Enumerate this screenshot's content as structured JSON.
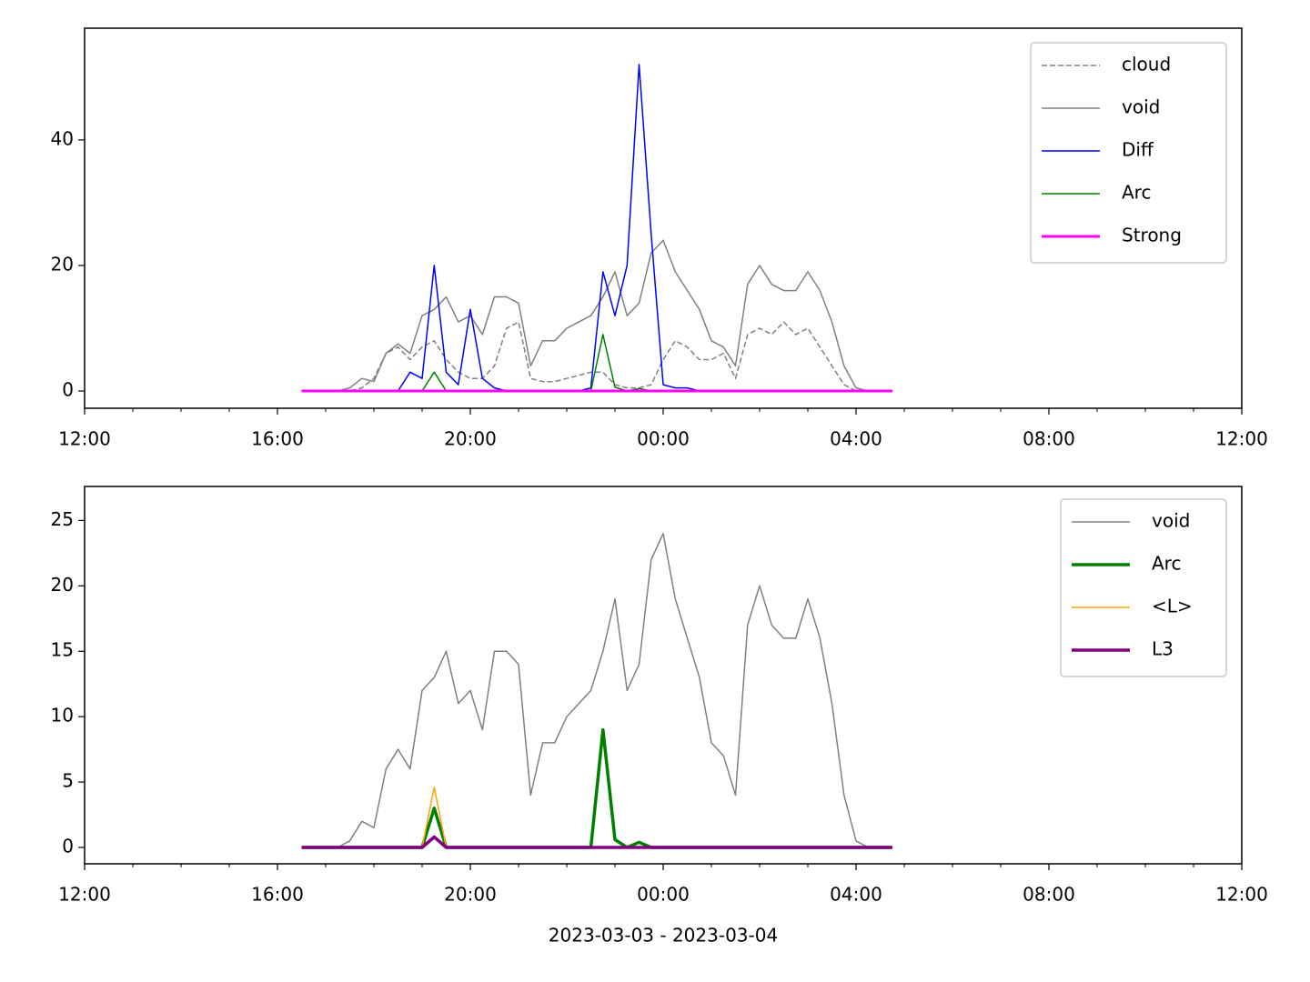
{
  "chart_data": [
    {
      "type": "line",
      "x": [
        "2023-03-03T16:30",
        "2023-03-03T16:45",
        "2023-03-03T17:00",
        "2023-03-03T17:15",
        "2023-03-03T17:30",
        "2023-03-03T17:45",
        "2023-03-03T18:00",
        "2023-03-03T18:15",
        "2023-03-03T18:30",
        "2023-03-03T18:45",
        "2023-03-03T19:00",
        "2023-03-03T19:15",
        "2023-03-03T19:30",
        "2023-03-03T19:45",
        "2023-03-03T20:00",
        "2023-03-03T20:15",
        "2023-03-03T20:30",
        "2023-03-03T20:45",
        "2023-03-03T21:00",
        "2023-03-03T21:15",
        "2023-03-03T21:30",
        "2023-03-03T21:45",
        "2023-03-03T22:00",
        "2023-03-03T22:15",
        "2023-03-03T22:30",
        "2023-03-03T22:45",
        "2023-03-03T23:00",
        "2023-03-03T23:15",
        "2023-03-03T23:30",
        "2023-03-03T23:45",
        "2023-03-04T00:00",
        "2023-03-04T00:15",
        "2023-03-04T00:30",
        "2023-03-04T00:45",
        "2023-03-04T01:00",
        "2023-03-04T01:15",
        "2023-03-04T01:30",
        "2023-03-04T01:45",
        "2023-03-04T02:00",
        "2023-03-04T02:15",
        "2023-03-04T02:30",
        "2023-03-04T02:45",
        "2023-03-04T03:00",
        "2023-03-04T03:15",
        "2023-03-04T03:30",
        "2023-03-04T03:45",
        "2023-03-04T04:00",
        "2023-03-04T04:15",
        "2023-03-04T04:30",
        "2023-03-04T04:45"
      ],
      "series": [
        {
          "name": "cloud",
          "color": "#808080",
          "dashed": true,
          "width": 1.5,
          "values": [
            0,
            0,
            0,
            0,
            0,
            0.5,
            2,
            6,
            7,
            5,
            7,
            8,
            5,
            3,
            2,
            2,
            4,
            10,
            11,
            2,
            1.5,
            1.5,
            2,
            2.5,
            3,
            3,
            1,
            0.5,
            0.5,
            1,
            5,
            8,
            7,
            5,
            5,
            6,
            2,
            9,
            10,
            9,
            11,
            9,
            10,
            7,
            4,
            1,
            0,
            0,
            0,
            0
          ]
        },
        {
          "name": "void",
          "color": "#808080",
          "width": 1.5,
          "values": [
            0,
            0,
            0,
            0,
            0.5,
            2,
            1.5,
            6,
            7.5,
            6,
            12,
            13,
            15,
            11,
            12,
            9,
            15,
            15,
            14,
            4,
            8,
            8,
            10,
            11,
            12,
            15,
            19,
            12,
            14,
            22,
            24,
            19,
            16,
            13,
            8,
            7,
            4,
            17,
            20,
            17,
            16,
            16,
            19,
            16,
            11,
            4,
            0.5,
            0,
            0,
            0
          ]
        },
        {
          "name": "Diff",
          "color": "#0000ff",
          "width": 1.5,
          "values": [
            0,
            0,
            0,
            0,
            0,
            0,
            0,
            0,
            0,
            3,
            2,
            20,
            3,
            1,
            13,
            2,
            0.5,
            0,
            0,
            0,
            0,
            0,
            0,
            0,
            0.5,
            19,
            12,
            20,
            52,
            25,
            1,
            0.5,
            0.5,
            0,
            0,
            0,
            0,
            0,
            0,
            0,
            0,
            0,
            0,
            0,
            0,
            0,
            0,
            0,
            0,
            0
          ]
        },
        {
          "name": "Arc",
          "color": "#008000",
          "width": 1.5,
          "values": [
            0,
            0,
            0,
            0,
            0,
            0,
            0,
            0,
            0,
            0,
            0,
            3,
            0,
            0,
            0,
            0,
            0,
            0,
            0,
            0,
            0,
            0,
            0,
            0,
            0,
            9,
            0.6,
            0,
            0.4,
            0,
            0,
            0,
            0,
            0,
            0,
            0,
            0,
            0,
            0,
            0,
            0,
            0,
            0,
            0,
            0,
            0,
            0,
            0,
            0,
            0
          ]
        },
        {
          "name": "Strong",
          "color": "#ff00ff",
          "width": 3,
          "values": [
            0,
            0,
            0,
            0,
            0,
            0,
            0,
            0,
            0,
            0,
            0,
            0,
            0,
            0,
            0,
            0,
            0,
            0,
            0,
            0,
            0,
            0,
            0,
            0,
            0,
            0,
            0,
            0,
            0,
            0,
            0,
            0,
            0,
            0,
            0,
            0,
            0,
            0,
            0,
            0,
            0,
            0,
            0,
            0,
            0,
            0,
            0,
            0,
            0,
            0
          ]
        }
      ],
      "xlim": [
        "2023-03-03T12:00",
        "2023-03-04T12:00"
      ],
      "xticks": [
        {
          "value": "2023-03-03T12:00",
          "label": "12:00"
        },
        {
          "value": "2023-03-03T16:00",
          "label": "16:00"
        },
        {
          "value": "2023-03-03T20:00",
          "label": "20:00"
        },
        {
          "value": "2023-03-04T00:00",
          "label": "00:00"
        },
        {
          "value": "2023-03-04T04:00",
          "label": "04:00"
        },
        {
          "value": "2023-03-04T08:00",
          "label": "08:00"
        },
        {
          "value": "2023-03-04T12:00",
          "label": "12:00"
        }
      ],
      "ylim": [
        -2.75,
        57.8
      ],
      "yticks": [
        0,
        20,
        40
      ],
      "legend": "upper right"
    },
    {
      "type": "line",
      "x": [
        "2023-03-03T16:30",
        "2023-03-03T16:45",
        "2023-03-03T17:00",
        "2023-03-03T17:15",
        "2023-03-03T17:30",
        "2023-03-03T17:45",
        "2023-03-03T18:00",
        "2023-03-03T18:15",
        "2023-03-03T18:30",
        "2023-03-03T18:45",
        "2023-03-03T19:00",
        "2023-03-03T19:15",
        "2023-03-03T19:30",
        "2023-03-03T19:45",
        "2023-03-03T20:00",
        "2023-03-03T20:15",
        "2023-03-03T20:30",
        "2023-03-03T20:45",
        "2023-03-03T21:00",
        "2023-03-03T21:15",
        "2023-03-03T21:30",
        "2023-03-03T21:45",
        "2023-03-03T22:00",
        "2023-03-03T22:15",
        "2023-03-03T22:30",
        "2023-03-03T22:45",
        "2023-03-03T23:00",
        "2023-03-03T23:15",
        "2023-03-03T23:30",
        "2023-03-03T23:45",
        "2023-03-04T00:00",
        "2023-03-04T00:15",
        "2023-03-04T00:30",
        "2023-03-04T00:45",
        "2023-03-04T01:00",
        "2023-03-04T01:15",
        "2023-03-04T01:30",
        "2023-03-04T01:45",
        "2023-03-04T02:00",
        "2023-03-04T02:15",
        "2023-03-04T02:30",
        "2023-03-04T02:45",
        "2023-03-04T03:00",
        "2023-03-04T03:15",
        "2023-03-04T03:30",
        "2023-03-04T03:45",
        "2023-03-04T04:00",
        "2023-03-04T04:15",
        "2023-03-04T04:30",
        "2023-03-04T04:45"
      ],
      "series": [
        {
          "name": "void",
          "color": "#808080",
          "width": 1.5,
          "values": [
            0,
            0,
            0,
            0,
            0.5,
            2,
            1.5,
            6,
            7.5,
            6,
            12,
            13,
            15,
            11,
            12,
            9,
            15,
            15,
            14,
            4,
            8,
            8,
            10,
            11,
            12,
            15,
            19,
            12,
            14,
            22,
            24,
            19,
            16,
            13,
            8,
            7,
            4,
            17,
            20,
            17,
            16,
            16,
            19,
            16,
            11,
            4,
            0.5,
            0,
            0,
            0
          ]
        },
        {
          "name": "Arc",
          "color": "#008000",
          "width": 3.5,
          "values": [
            0,
            0,
            0,
            0,
            0,
            0,
            0,
            0,
            0,
            0,
            0,
            3,
            0,
            0,
            0,
            0,
            0,
            0,
            0,
            0,
            0,
            0,
            0,
            0,
            0,
            9,
            0.6,
            0,
            0.4,
            0,
            0,
            0,
            0,
            0,
            0,
            0,
            0,
            0,
            0,
            0,
            0,
            0,
            0,
            0,
            0,
            0,
            0,
            0,
            0,
            0
          ]
        },
        {
          "name": "<L>",
          "color": "#ffa500",
          "width": 1.5,
          "values": [
            0,
            0,
            0,
            0,
            0,
            0,
            0,
            0,
            0,
            0,
            0,
            4.6,
            0,
            0,
            0,
            0,
            0,
            0,
            0,
            0,
            0,
            0,
            0,
            0,
            0,
            0,
            0,
            0,
            0,
            0,
            0,
            0,
            0,
            0,
            0,
            0,
            0,
            0,
            0,
            0,
            0,
            0,
            0,
            0,
            0,
            0,
            0,
            0,
            0,
            0
          ]
        },
        {
          "name": "L3",
          "color": "#800080",
          "width": 3.5,
          "values": [
            0,
            0,
            0,
            0,
            0,
            0,
            0,
            0,
            0,
            0,
            0,
            0.8,
            0,
            0,
            0,
            0,
            0,
            0,
            0,
            0,
            0,
            0,
            0,
            0,
            0,
            0,
            0,
            0,
            0,
            0,
            0,
            0,
            0,
            0,
            0,
            0,
            0,
            0,
            0,
            0,
            0,
            0,
            0,
            0,
            0,
            0,
            0,
            0,
            0,
            0
          ]
        }
      ],
      "xlim": [
        "2023-03-03T12:00",
        "2023-03-04T12:00"
      ],
      "xticks": [
        {
          "value": "2023-03-03T12:00",
          "label": "12:00"
        },
        {
          "value": "2023-03-03T16:00",
          "label": "16:00"
        },
        {
          "value": "2023-03-03T20:00",
          "label": "20:00"
        },
        {
          "value": "2023-03-04T00:00",
          "label": "00:00"
        },
        {
          "value": "2023-03-04T04:00",
          "label": "04:00"
        },
        {
          "value": "2023-03-04T08:00",
          "label": "08:00"
        },
        {
          "value": "2023-03-04T12:00",
          "label": "12:00"
        }
      ],
      "xlabel": "2023-03-03 - 2023-03-04",
      "ylim": [
        -1.25,
        27.6
      ],
      "yticks": [
        0,
        5,
        10,
        15,
        20,
        25
      ],
      "legend": "upper right"
    }
  ]
}
